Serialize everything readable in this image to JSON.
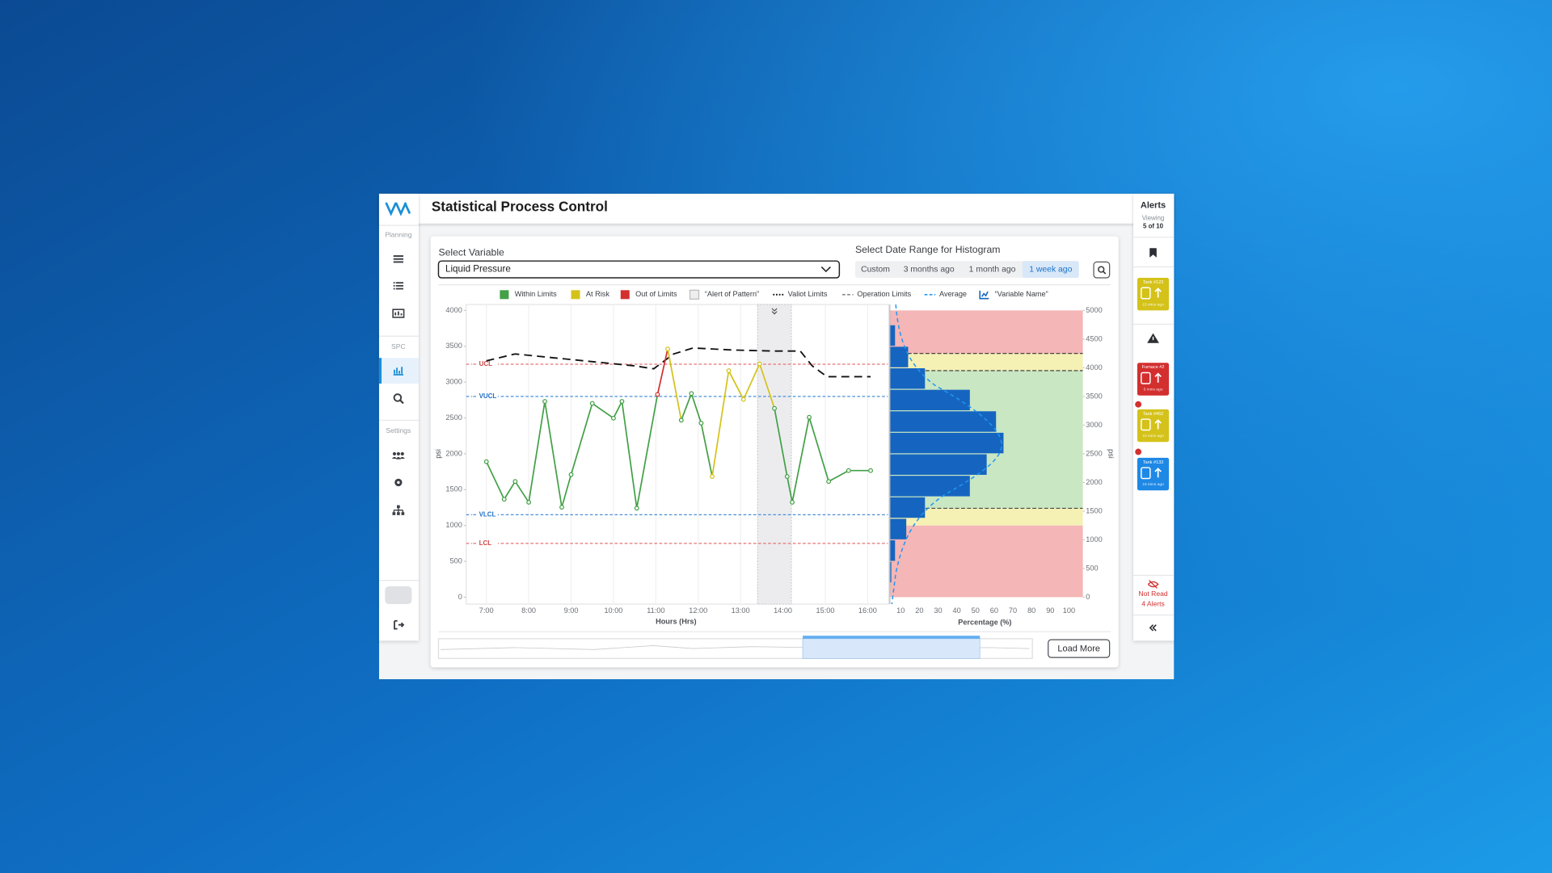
{
  "app": {
    "title": "Statistical Process Control"
  },
  "sidebar": {
    "sections": [
      "Planning",
      "SPC",
      "Settings"
    ]
  },
  "controls": {
    "select_label": "Select Variable",
    "selected": "Liquid Pressure",
    "date_label": "Select Date Range for Histogram",
    "date_options": [
      "Custom",
      "3 months ago",
      "1 month ago",
      "1 week ago"
    ],
    "active_option": 3,
    "load_more": "Load More"
  },
  "legend": [
    {
      "name": "Within Limits",
      "color": "#43a047",
      "kind": "box"
    },
    {
      "name": "At Risk",
      "color": "#d4c21a",
      "kind": "box"
    },
    {
      "name": "Out of Limits",
      "color": "#d32f2f",
      "kind": "box"
    },
    {
      "name": "“Alert of Pattern”",
      "color": "#eeeeee",
      "kind": "box"
    },
    {
      "name": "Valiot Limits",
      "color": "#111111",
      "kind": "dots"
    },
    {
      "name": "Operation Limits",
      "color": "#888888",
      "kind": "dash"
    },
    {
      "name": "Average",
      "color": "#2196f3",
      "kind": "dash"
    },
    {
      "name": "“Variable Name”",
      "color": "#1565c0",
      "kind": "icon"
    }
  ],
  "chart_data": [
    {
      "type": "line",
      "xlabel": "Hours (Hrs)",
      "ylabel": "psi",
      "xlim": [
        6.5,
        16.5
      ],
      "ylim": [
        0,
        4000
      ],
      "xticks": [
        {
          "value": 7,
          "label": "7:00"
        },
        {
          "value": 8,
          "label": "8:00"
        },
        {
          "value": 9,
          "label": "9:00"
        },
        {
          "value": 10,
          "label": "10:00"
        },
        {
          "value": 11,
          "label": "11:00"
        },
        {
          "value": 12,
          "label": "12:00"
        },
        {
          "value": 13,
          "label": "13:00"
        },
        {
          "value": 14,
          "label": "14:00"
        },
        {
          "value": 15,
          "label": "15:00"
        },
        {
          "value": 16,
          "label": "16:00"
        }
      ],
      "yticks": [
        0,
        500,
        1000,
        1500,
        2000,
        2500,
        3000,
        3500,
        4000
      ],
      "grid": true,
      "series": [
        {
          "name": "Liquid Pressure",
          "color": "#43a047",
          "x": [
            7.0,
            7.42,
            7.68,
            8.0,
            8.38,
            8.78,
            9.0,
            9.5,
            10.0,
            10.2,
            10.55,
            11.04,
            11.28,
            11.6,
            11.84,
            12.07,
            12.33,
            12.72,
            13.07,
            13.45,
            13.8,
            14.1,
            14.22,
            14.62,
            15.08,
            15.55,
            16.07
          ],
          "values": [
            1890,
            1366,
            1614,
            1324,
            2731,
            1255,
            1710,
            2703,
            2497,
            2731,
            1241,
            2828,
            3462,
            2469,
            2841,
            2428,
            1683,
            3159,
            2759,
            3255,
            2634,
            1683,
            1324,
            2510,
            1614,
            1766,
            1766
          ],
          "segment_colors": [
            "#43a047",
            "#43a047",
            "#43a047",
            "#43a047",
            "#43a047",
            "#43a047",
            "#43a047",
            "#43a047",
            "#43a047",
            "#43a047",
            "#43a047",
            "#d32f2f",
            "#d4c21a",
            "#43a047",
            "#43a047",
            "#43a047",
            "#d4c21a",
            "#d4c21a",
            "#d4c21a",
            "#d4c21a",
            "#43a047",
            "#43a047",
            "#43a047",
            "#43a047",
            "#43a047",
            "#43a047"
          ]
        },
        {
          "name": "Valiot Limits",
          "color": "#111111",
          "dash": true,
          "x": [
            7.0,
            7.68,
            8.61,
            9.55,
            10.48,
            10.95,
            11.42,
            11.88,
            12.82,
            13.75,
            14.41,
            14.69,
            15.04,
            16.07
          ],
          "values": [
            3297,
            3393,
            3338,
            3283,
            3228,
            3186,
            3393,
            3476,
            3448,
            3434,
            3434,
            3228,
            3076,
            3076
          ]
        }
      ],
      "control_limits": [
        {
          "label": "UCL",
          "value": 3250,
          "color": "#e57373"
        },
        {
          "label": "VUCL",
          "value": 2800,
          "color": "#4a90d9"
        },
        {
          "label": "VLCL",
          "value": 1150,
          "color": "#4a90d9"
        },
        {
          "label": "LCL",
          "value": 750,
          "color": "#e57373"
        }
      ],
      "alert_band": [
        13.4,
        14.2
      ]
    },
    {
      "type": "histogram",
      "orientation": "horizontal",
      "xlabel": "Percentage (%)",
      "ylabel": "psi",
      "color": "#1565c0",
      "bins": [
        250,
        625,
        1000,
        1375,
        1750,
        2125,
        2500,
        2875,
        3250,
        3625,
        4000,
        4375,
        4750
      ],
      "values": [
        5,
        7,
        13,
        23,
        47,
        56,
        65,
        61,
        47,
        23,
        14,
        7
      ],
      "xlim": [
        4,
        100
      ],
      "xticks": [
        10,
        20,
        30,
        40,
        50,
        60,
        70,
        80,
        90,
        100
      ],
      "ylim": [
        0,
        5000
      ],
      "yticks": [
        0,
        500,
        1000,
        1500,
        2000,
        2500,
        3000,
        3500,
        4000,
        4500,
        5000
      ],
      "zones": [
        {
          "from": 0,
          "to": 1250,
          "color": "#f4b6b6"
        },
        {
          "from": 1250,
          "to": 1550,
          "color": "#f5f0b4"
        },
        {
          "from": 1550,
          "to": 3950,
          "color": "#c9e7c3"
        },
        {
          "from": 3950,
          "to": 4250,
          "color": "#f5f0b4"
        },
        {
          "from": 4250,
          "to": 5000,
          "color": "#f4b6b6"
        }
      ],
      "limit_lines": [
        1550,
        3950,
        4250
      ]
    }
  ],
  "alerts": {
    "title": "Alerts",
    "viewing": "Viewing",
    "count": "5 of 10",
    "cards": [
      {
        "name": "Tank #123",
        "time": "15 mins ago",
        "color": "#d4c21a"
      },
      {
        "name": "Furnace #2",
        "time": "5 mins ago",
        "color": "#d32f2f"
      },
      {
        "name": "Tank #452",
        "time": "10 mins ago",
        "color": "#d4c21a"
      },
      {
        "name": "Tank #133",
        "time": "15 mins ago",
        "color": "#1e88e5"
      }
    ],
    "not_read": "Not Read",
    "not_read_count": "4 Alerts"
  }
}
